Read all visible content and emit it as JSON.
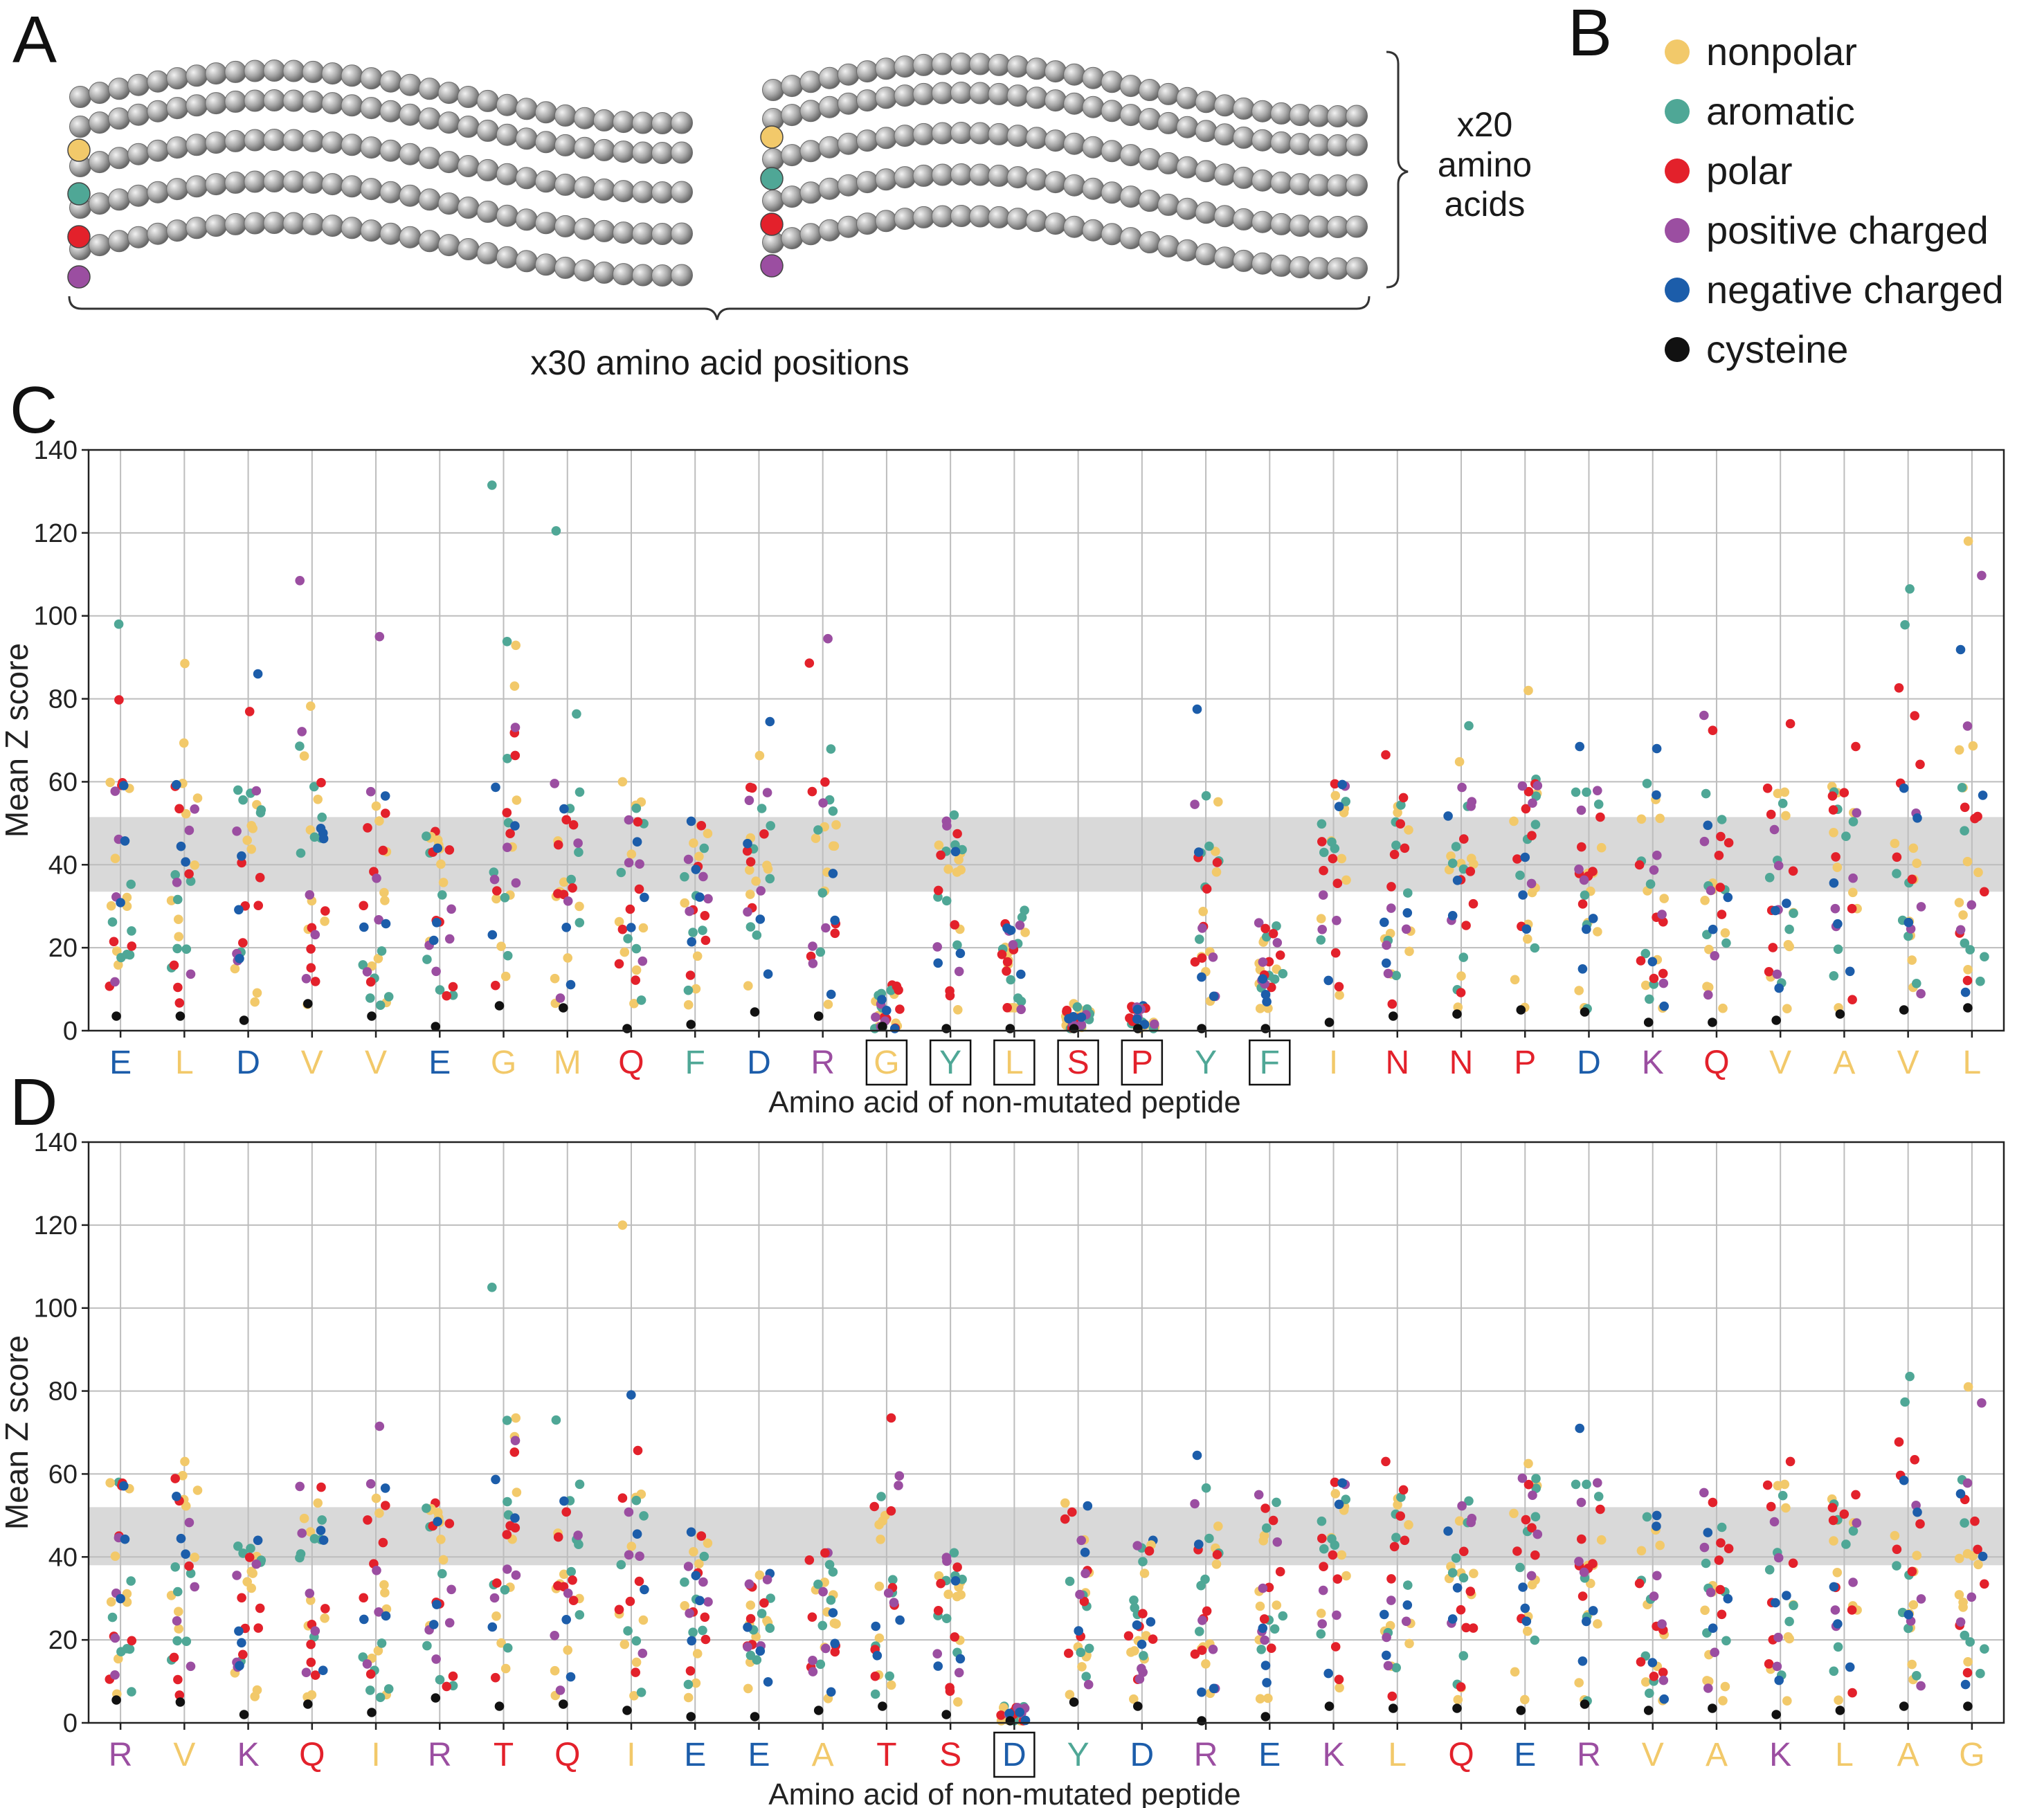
{
  "panels": {
    "a": "A",
    "b": "B",
    "c": "C",
    "d": "D"
  },
  "schematic": {
    "brace_right_label": [
      "x20",
      "amino",
      "acids"
    ],
    "brace_bottom_label": "x30 amino acid positions",
    "rows": [
      "nonpolar",
      "aromatic",
      "polar",
      "positive charged"
    ]
  },
  "legend": {
    "items": [
      {
        "key": "nonpolar",
        "label": "nonpolar",
        "color": "#F2C96A"
      },
      {
        "key": "aromatic",
        "label": "aromatic",
        "color": "#4FA796"
      },
      {
        "key": "polar",
        "label": "polar",
        "color": "#E3212B"
      },
      {
        "key": "positive",
        "label": "positive charged",
        "color": "#9B4EA1"
      },
      {
        "key": "negative",
        "label": "negative charged",
        "color": "#1C5DAA"
      },
      {
        "key": "cysteine",
        "label": "cysteine",
        "color": "#111111"
      }
    ]
  },
  "colors": {
    "band": "#d9d9d9",
    "grid": "#bdbdbd",
    "bead": "#9e9e9e"
  },
  "chart_data": [
    {
      "panel": "C",
      "type": "scatter",
      "xlabel": "Amino acid of non-mutated peptide",
      "ylabel": "Mean Z score",
      "ylim": [
        0,
        140
      ],
      "yticks": [
        0,
        20,
        40,
        60,
        80,
        100,
        120,
        140
      ],
      "band": [
        33.5,
        51.5
      ],
      "categories": [
        {
          "aa": "E",
          "class": "negative",
          "max": 98,
          "boxed": false
        },
        {
          "aa": "L",
          "class": "nonpolar",
          "max": 88.5,
          "boxed": false
        },
        {
          "aa": "D",
          "class": "negative",
          "max": 86,
          "boxed": false
        },
        {
          "aa": "V",
          "class": "nonpolar",
          "max": 108.5,
          "boxed": false
        },
        {
          "aa": "V",
          "class": "nonpolar",
          "max": 95,
          "boxed": false
        },
        {
          "aa": "E",
          "class": "negative",
          "max": 48,
          "boxed": false
        },
        {
          "aa": "G",
          "class": "nonpolar",
          "max": 131.5,
          "boxed": false
        },
        {
          "aa": "M",
          "class": "nonpolar",
          "max": 120.5,
          "boxed": false
        },
        {
          "aa": "Q",
          "class": "polar",
          "max": 60,
          "boxed": false
        },
        {
          "aa": "F",
          "class": "aromatic",
          "max": 50.5,
          "boxed": false
        },
        {
          "aa": "D",
          "class": "negative",
          "max": 74.5,
          "boxed": false
        },
        {
          "aa": "R",
          "class": "positive",
          "max": 94.5,
          "boxed": false
        },
        {
          "aa": "G",
          "class": "nonpolar",
          "max": 11,
          "boxed": true
        },
        {
          "aa": "Y",
          "class": "aromatic",
          "max": 52,
          "boxed": true
        },
        {
          "aa": "L",
          "class": "nonpolar",
          "max": 29,
          "boxed": true
        },
        {
          "aa": "S",
          "class": "polar",
          "max": 6.5,
          "boxed": true
        },
        {
          "aa": "P",
          "class": "polar",
          "max": 6,
          "boxed": true
        },
        {
          "aa": "Y",
          "class": "aromatic",
          "max": 77.5,
          "boxed": false
        },
        {
          "aa": "F",
          "class": "aromatic",
          "max": 26,
          "boxed": true
        },
        {
          "aa": "I",
          "class": "nonpolar",
          "max": 59.5,
          "boxed": false
        },
        {
          "aa": "N",
          "class": "polar",
          "max": 66.5,
          "boxed": false
        },
        {
          "aa": "N",
          "class": "polar",
          "max": 73.5,
          "boxed": false
        },
        {
          "aa": "P",
          "class": "polar",
          "max": 82,
          "boxed": false
        },
        {
          "aa": "D",
          "class": "negative",
          "max": 68.5,
          "boxed": false
        },
        {
          "aa": "K",
          "class": "positive",
          "max": 68,
          "boxed": false
        },
        {
          "aa": "Q",
          "class": "polar",
          "max": 76,
          "boxed": false
        },
        {
          "aa": "V",
          "class": "nonpolar",
          "max": 74,
          "boxed": false
        },
        {
          "aa": "A",
          "class": "nonpolar",
          "max": 68.5,
          "boxed": false
        },
        {
          "aa": "V",
          "class": "nonpolar",
          "max": 106.5,
          "boxed": false
        },
        {
          "aa": "L",
          "class": "nonpolar",
          "max": 118,
          "boxed": false
        }
      ],
      "cysteine": [
        3.5,
        3.5,
        2.5,
        6.5,
        3.5,
        1,
        6,
        5.5,
        0.5,
        1.5,
        4.5,
        3.5,
        1,
        0.5,
        0.5,
        0.5,
        0.5,
        0.5,
        0.5,
        2,
        3.5,
        4,
        5,
        4.5,
        2,
        2,
        2.5,
        4,
        5,
        5.5
      ]
    },
    {
      "panel": "D",
      "type": "scatter",
      "xlabel": "Amino acid of non-mutated peptide",
      "ylabel": "Mean Z score",
      "ylim": [
        0,
        140
      ],
      "yticks": [
        0,
        20,
        40,
        60,
        80,
        100,
        120,
        140
      ],
      "band": [
        38,
        52
      ],
      "categories": [
        {
          "aa": "R",
          "class": "positive",
          "max": 58,
          "boxed": false
        },
        {
          "aa": "V",
          "class": "nonpolar",
          "max": 63,
          "boxed": false
        },
        {
          "aa": "K",
          "class": "positive",
          "max": 44,
          "boxed": false
        },
        {
          "aa": "Q",
          "class": "polar",
          "max": 57,
          "boxed": false
        },
        {
          "aa": "I",
          "class": "nonpolar",
          "max": 71.5,
          "boxed": false
        },
        {
          "aa": "R",
          "class": "positive",
          "max": 53,
          "boxed": false
        },
        {
          "aa": "T",
          "class": "polar",
          "max": 105,
          "boxed": false
        },
        {
          "aa": "Q",
          "class": "polar",
          "max": 73,
          "boxed": false
        },
        {
          "aa": "I",
          "class": "nonpolar",
          "max": 120,
          "boxed": false
        },
        {
          "aa": "E",
          "class": "negative",
          "max": 46,
          "boxed": false
        },
        {
          "aa": "E",
          "class": "negative",
          "max": 36,
          "boxed": false
        },
        {
          "aa": "A",
          "class": "nonpolar",
          "max": 41,
          "boxed": false
        },
        {
          "aa": "T",
          "class": "polar",
          "max": 73.5,
          "boxed": false
        },
        {
          "aa": "S",
          "class": "polar",
          "max": 41,
          "boxed": false
        },
        {
          "aa": "D",
          "class": "negative",
          "max": 4,
          "boxed": true
        },
        {
          "aa": "Y",
          "class": "aromatic",
          "max": 53,
          "boxed": false
        },
        {
          "aa": "D",
          "class": "negative",
          "max": 44,
          "boxed": false
        },
        {
          "aa": "R",
          "class": "positive",
          "max": 64.5,
          "boxed": false
        },
        {
          "aa": "E",
          "class": "negative",
          "max": 55,
          "boxed": false
        },
        {
          "aa": "K",
          "class": "positive",
          "max": 58,
          "boxed": false
        },
        {
          "aa": "L",
          "class": "nonpolar",
          "max": 63,
          "boxed": false
        },
        {
          "aa": "Q",
          "class": "polar",
          "max": 53.5,
          "boxed": false
        },
        {
          "aa": "E",
          "class": "negative",
          "max": 62.5,
          "boxed": false
        },
        {
          "aa": "R",
          "class": "positive",
          "max": 71,
          "boxed": false
        },
        {
          "aa": "V",
          "class": "nonpolar",
          "max": 50,
          "boxed": false
        },
        {
          "aa": "A",
          "class": "nonpolar",
          "max": 55.5,
          "boxed": false
        },
        {
          "aa": "K",
          "class": "positive",
          "max": 63,
          "boxed": false
        },
        {
          "aa": "L",
          "class": "nonpolar",
          "max": 55,
          "boxed": false
        },
        {
          "aa": "A",
          "class": "nonpolar",
          "max": 83.5,
          "boxed": false
        },
        {
          "aa": "G",
          "class": "nonpolar",
          "max": 81,
          "boxed": false
        }
      ],
      "cysteine": [
        5.5,
        5,
        2,
        4.5,
        2.5,
        6,
        4,
        4.5,
        3,
        1.5,
        1.5,
        3,
        4,
        2,
        0.5,
        5,
        4,
        0.5,
        1.5,
        4,
        3.5,
        3.5,
        3,
        4.5,
        3,
        3.5,
        2,
        3,
        4,
        4
      ]
    }
  ]
}
